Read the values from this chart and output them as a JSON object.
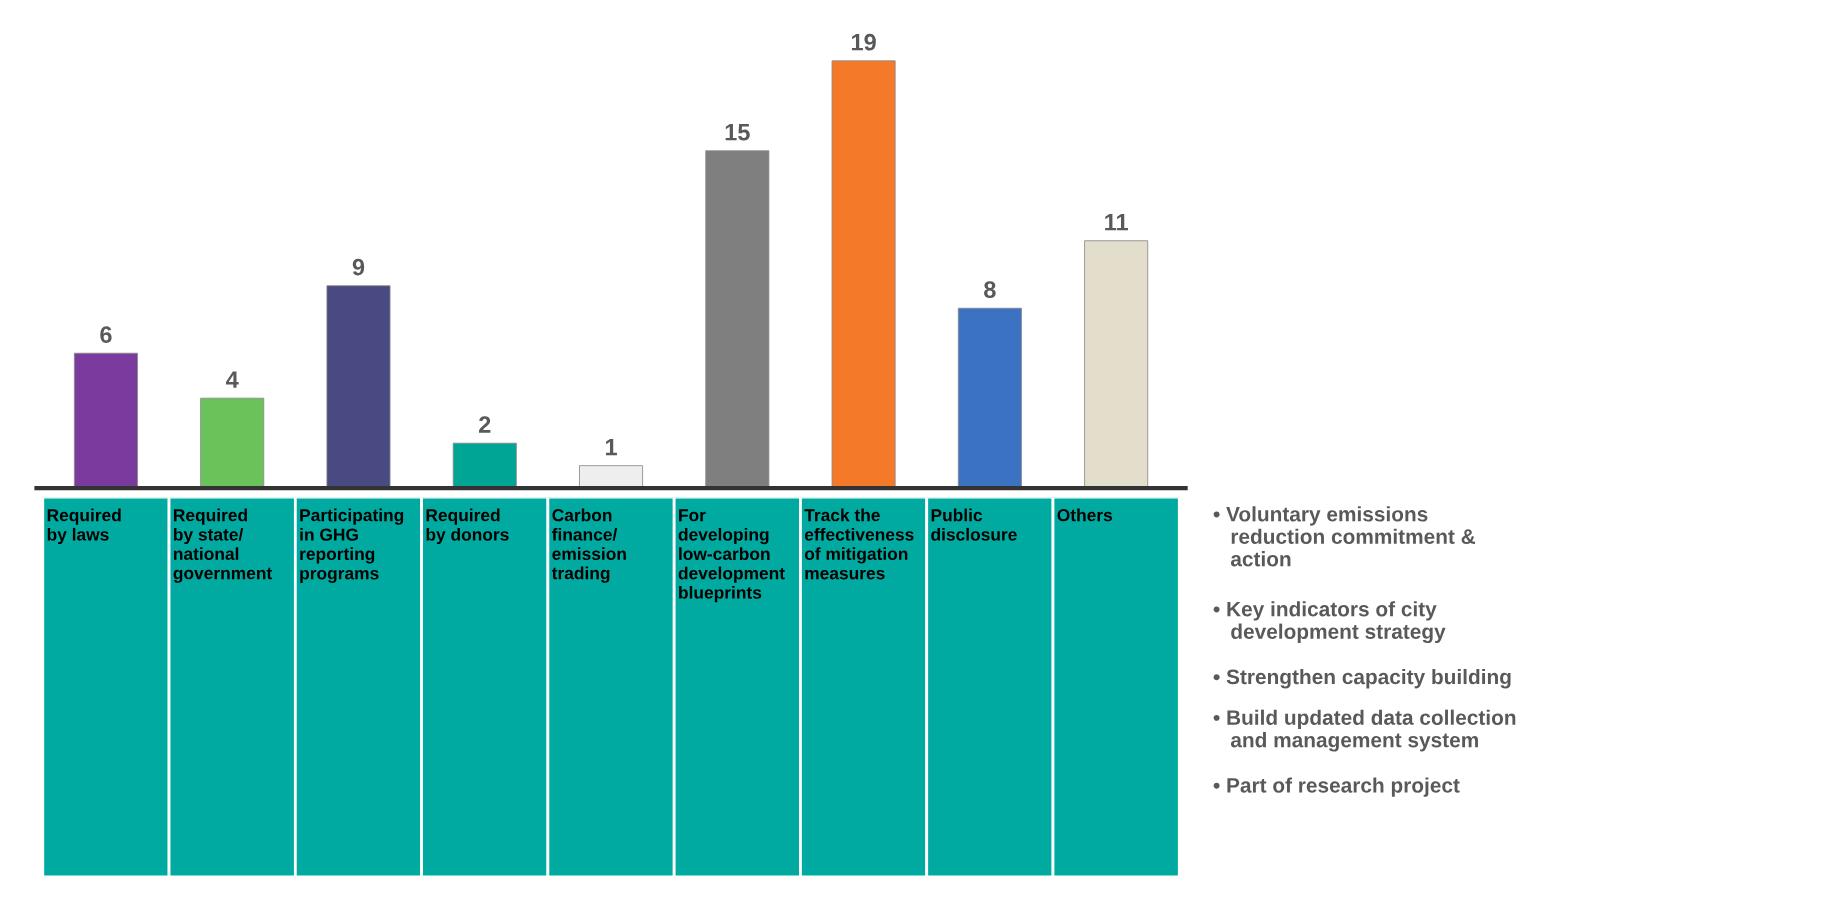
{
  "chart_data": {
    "type": "bar",
    "categories": [
      "Required\nby laws",
      "Required\nby state/\nnational\ngovernment",
      "Participating\nin GHG\nreporting\nprograms",
      "Required\nby donors",
      "Carbon\nfinance/\nemission\ntrading",
      "For\ndeveloping\nlow-carbon\ndevelopment\nblueprints",
      "Track the\neffectiveness\nof mitigation\nmeasures",
      "Public\ndisclosure",
      "Others"
    ],
    "values": [
      6,
      4,
      9,
      2,
      1,
      15,
      19,
      8,
      11
    ],
    "colors": [
      "#7b3a9e",
      "#6cc25a",
      "#4a4a82",
      "#00a595",
      "#eeeeee",
      "#7f7f7f",
      "#f47a2a",
      "#3b72c2",
      "#e2decb"
    ],
    "data_labels": true,
    "legend": false,
    "annotations": [
      "• Voluntary emissions\n   reduction commitment &\n   action",
      "• Key indicators of city\n   development strategy",
      "• Strengthen capacity building",
      "• Build updated data collection\n   and management system",
      "• Part of research project"
    ]
  }
}
